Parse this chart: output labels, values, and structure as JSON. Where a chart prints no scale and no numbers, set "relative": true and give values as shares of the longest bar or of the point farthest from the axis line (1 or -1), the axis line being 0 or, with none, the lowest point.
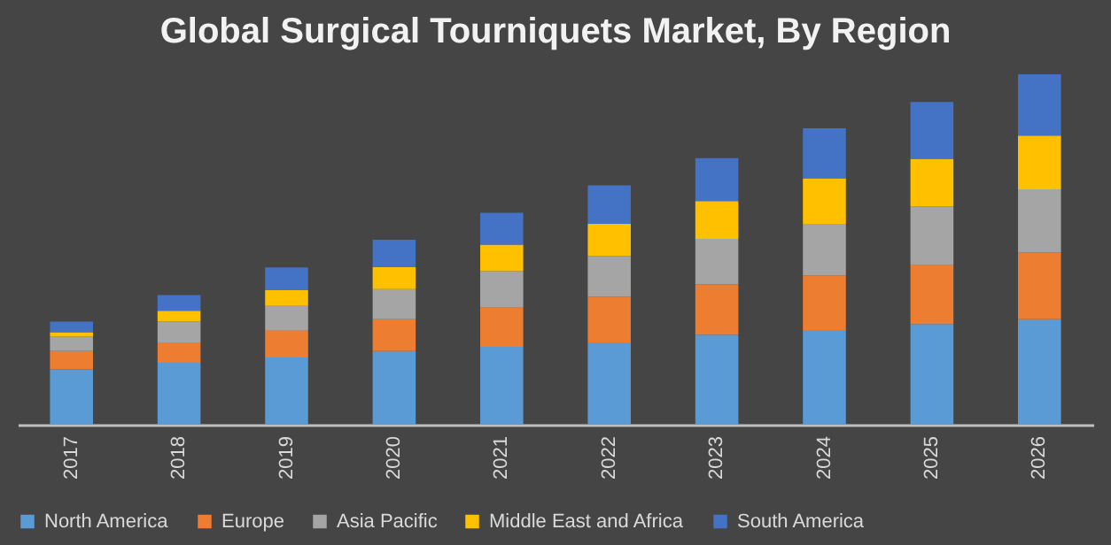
{
  "chart_data": {
    "type": "bar",
    "title": "Global Surgical Tourniquets Market, By Region",
    "relative": true,
    "stacked": true,
    "legend": "bottom",
    "categories": [
      "2017",
      "2018",
      "2019",
      "2020",
      "2021",
      "2022",
      "2023",
      "2024",
      "2025",
      "2026"
    ],
    "series": [
      {
        "name": "North America",
        "color": "#5b9bd5",
        "values": [
          0.158,
          0.177,
          0.192,
          0.21,
          0.222,
          0.235,
          0.257,
          0.27,
          0.287,
          0.301
        ]
      },
      {
        "name": "Europe",
        "color": "#ed7d31",
        "values": [
          0.052,
          0.058,
          0.078,
          0.091,
          0.112,
          0.13,
          0.143,
          0.156,
          0.168,
          0.19
        ]
      },
      {
        "name": "Asia Pacific",
        "color": "#a5a5a5",
        "values": [
          0.041,
          0.06,
          0.069,
          0.086,
          0.104,
          0.117,
          0.13,
          0.147,
          0.168,
          0.181
        ]
      },
      {
        "name": "Middle East and Africa",
        "color": "#ffc000",
        "values": [
          0.013,
          0.03,
          0.045,
          0.063,
          0.076,
          0.091,
          0.108,
          0.13,
          0.136,
          0.153
        ]
      },
      {
        "name": "South America",
        "color": "#4472c4",
        "values": [
          0.03,
          0.045,
          0.065,
          0.078,
          0.091,
          0.11,
          0.123,
          0.143,
          0.162,
          0.175
        ]
      }
    ]
  }
}
